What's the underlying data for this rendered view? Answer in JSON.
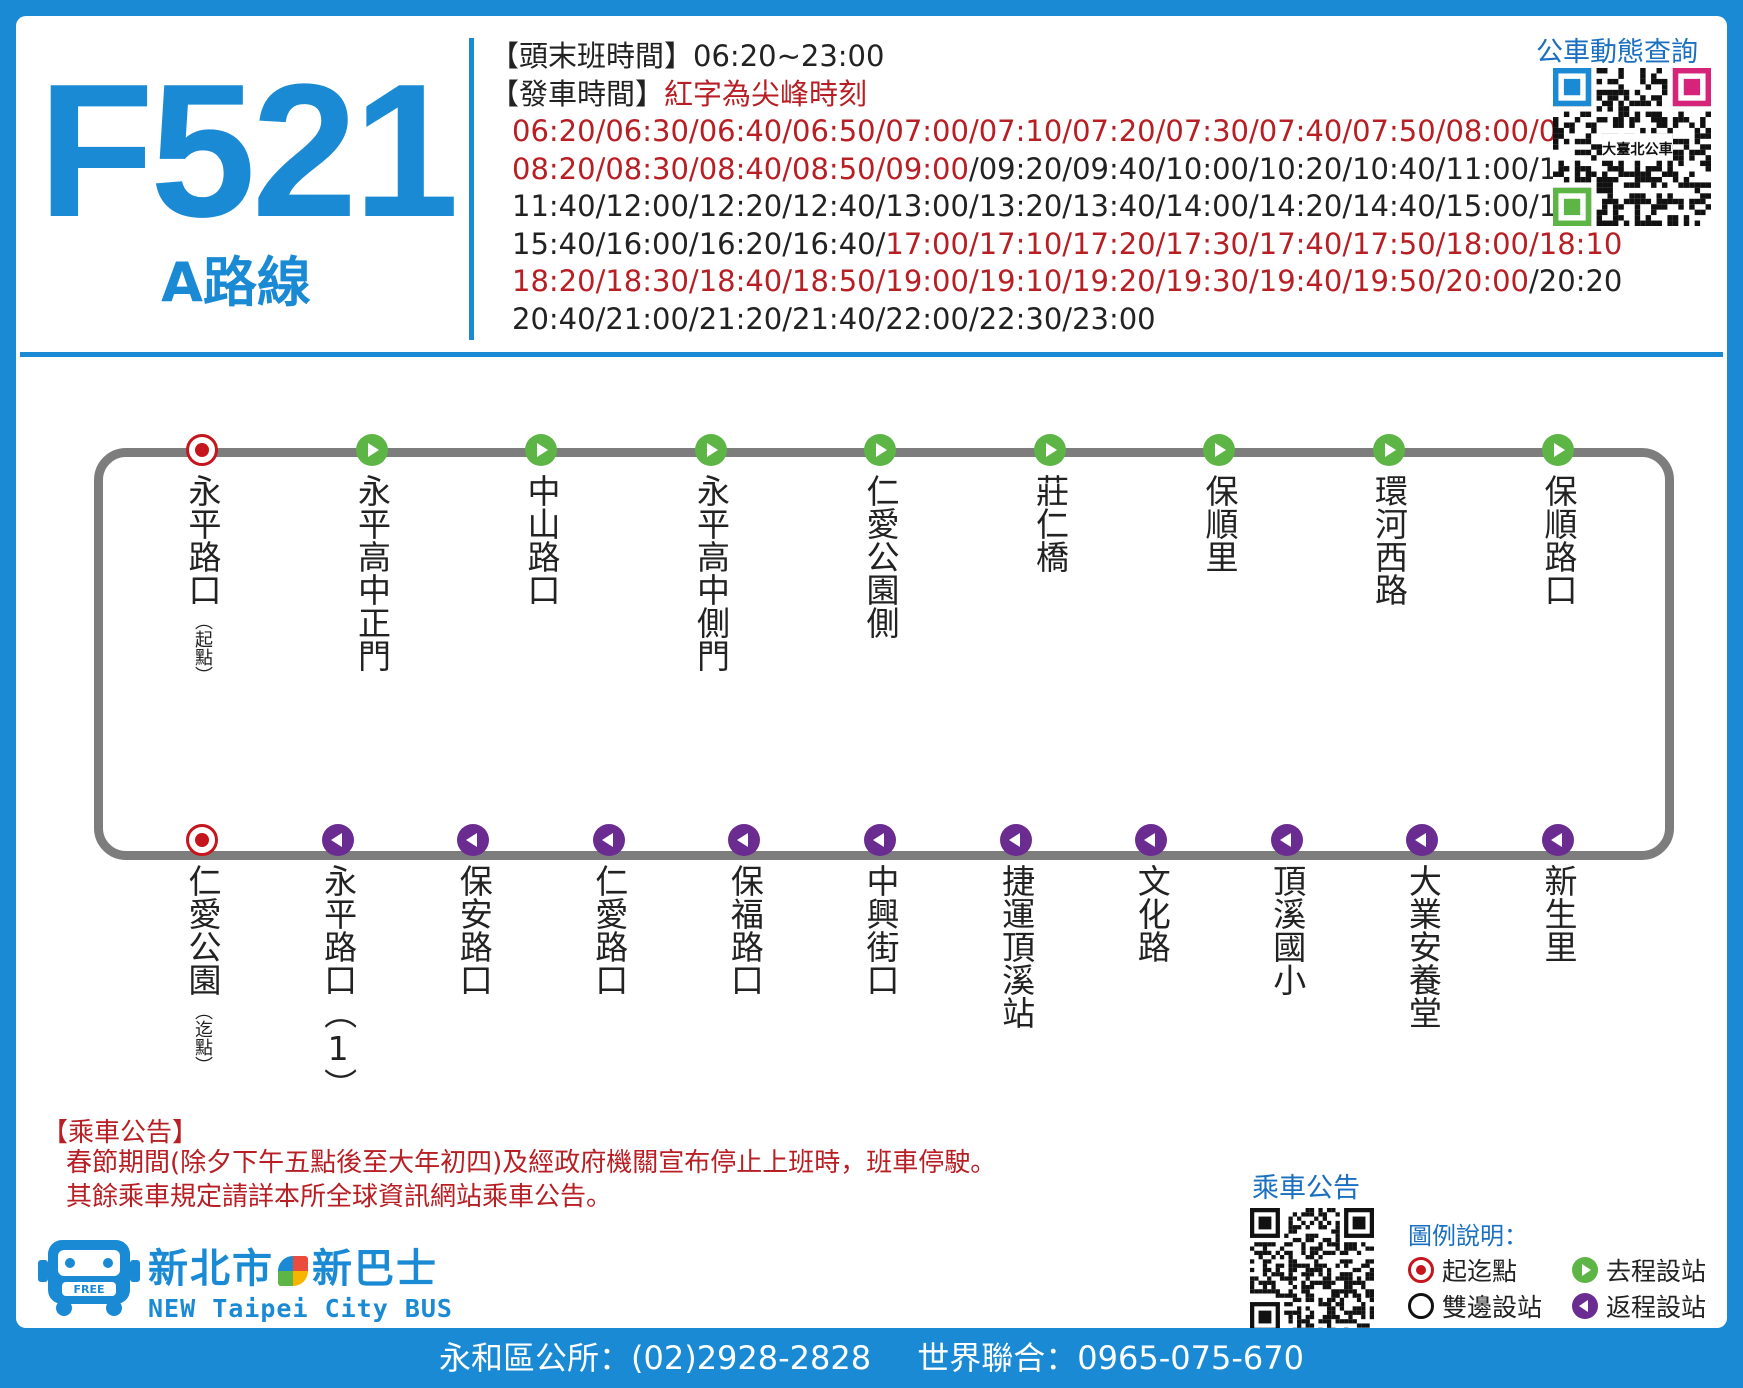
{
  "route": {
    "number": "F521",
    "subtitle": "A路線"
  },
  "schedule": {
    "first_last_label": "【頭末班時間】",
    "first_last_value": "06:20~23:00",
    "departure_label": "【發車時間】",
    "departure_note": "紅字為尖峰時刻",
    "lines": [
      [
        {
          "text": "06:20/06:30/06:40/06:50/07:00/07:10/07:20/07:30/07:40/07:50/08:00/08:10",
          "peak": true
        }
      ],
      [
        {
          "text": "08:20/08:30/08:40/08:50/09:00",
          "peak": true
        },
        {
          "text": "/09:20/09:40/10:00/10:20/10:40/11:00/11:20",
          "peak": false
        }
      ],
      [
        {
          "text": "11:40/12:00/12:20/12:40/13:00/13:20/13:40/14:00/14:20/14:40/15:00/15:20",
          "peak": false
        }
      ],
      [
        {
          "text": "15:40/16:00/16:20/16:40/",
          "peak": false
        },
        {
          "text": "17:00/17:10/17:20/17:30/17:40/17:50/18:00/18:10",
          "peak": true
        }
      ],
      [
        {
          "text": "18:20/18:30/18:40/18:50/19:00/19:10/19:20/19:30/19:40/19:50/20:00",
          "peak": true
        },
        {
          "text": "/20:20",
          "peak": false
        }
      ],
      [
        {
          "text": "20:40/21:00/21:20/21:40/22:00/22:30/23:00",
          "peak": false
        }
      ]
    ]
  },
  "qr_dynamic": {
    "label": "公車動態查詢",
    "logo_text": "大臺北公車"
  },
  "stops_outbound": [
    {
      "name": "永平路口",
      "note": "（起點）",
      "type": "terminal"
    },
    {
      "name": "永平高中正門",
      "note": "",
      "type": "outbound"
    },
    {
      "name": "中山路口",
      "note": "",
      "type": "outbound"
    },
    {
      "name": "永平高中側門",
      "note": "",
      "type": "outbound"
    },
    {
      "name": "仁愛公園側",
      "note": "",
      "type": "outbound"
    },
    {
      "name": "莊仁橋",
      "note": "",
      "type": "outbound"
    },
    {
      "name": "保順里",
      "note": "",
      "type": "outbound"
    },
    {
      "name": "環河西路",
      "note": "",
      "type": "outbound"
    },
    {
      "name": "保順路口",
      "note": "",
      "type": "outbound"
    }
  ],
  "stops_return": [
    {
      "name": "仁愛公園",
      "note": "（迄點）",
      "type": "terminal"
    },
    {
      "name": "永平路口（1）",
      "note": "",
      "type": "return"
    },
    {
      "name": "保安路口",
      "note": "",
      "type": "return"
    },
    {
      "name": "仁愛路口",
      "note": "",
      "type": "return"
    },
    {
      "name": "保福路口",
      "note": "",
      "type": "return"
    },
    {
      "name": "中興街口",
      "note": "",
      "type": "return"
    },
    {
      "name": "捷運頂溪站",
      "note": "",
      "type": "return"
    },
    {
      "name": "文化路",
      "note": "",
      "type": "return"
    },
    {
      "name": "頂溪國小",
      "note": "",
      "type": "return"
    },
    {
      "name": "大業安養堂",
      "note": "",
      "type": "return"
    },
    {
      "name": "新生里",
      "note": "",
      "type": "return"
    }
  ],
  "notice": {
    "title": "【乘車公告】",
    "lines": [
      "春節期間(除夕下午五點後至大年初四)及經政府機關宣布停止上班時，班車停駛。",
      "其餘乘車規定請詳本所全球資訊網站乘車公告。"
    ]
  },
  "logo": {
    "cn_left": "新北市",
    "cn_right": "新巴士",
    "en": "NEW Taipei City BUS",
    "badge": "FREE"
  },
  "notice_qr": {
    "label": "乘車公告"
  },
  "legend": {
    "title": "圖例說明：",
    "terminal": "起迄點",
    "outbound": "去程設站",
    "both": "雙邊設站",
    "return": "返程設站"
  },
  "footer": {
    "office": "永和區公所：(02)2928-2828",
    "operator": "世界聯合：0965-075-670"
  },
  "colors": {
    "brand_blue": "#1a8ad4",
    "peak_red": "#b81f24",
    "outbound_green": "#5db546",
    "return_purple": "#6a2c91",
    "terminal_red": "#c4161c",
    "route_line_gray": "#7d7d7d"
  }
}
